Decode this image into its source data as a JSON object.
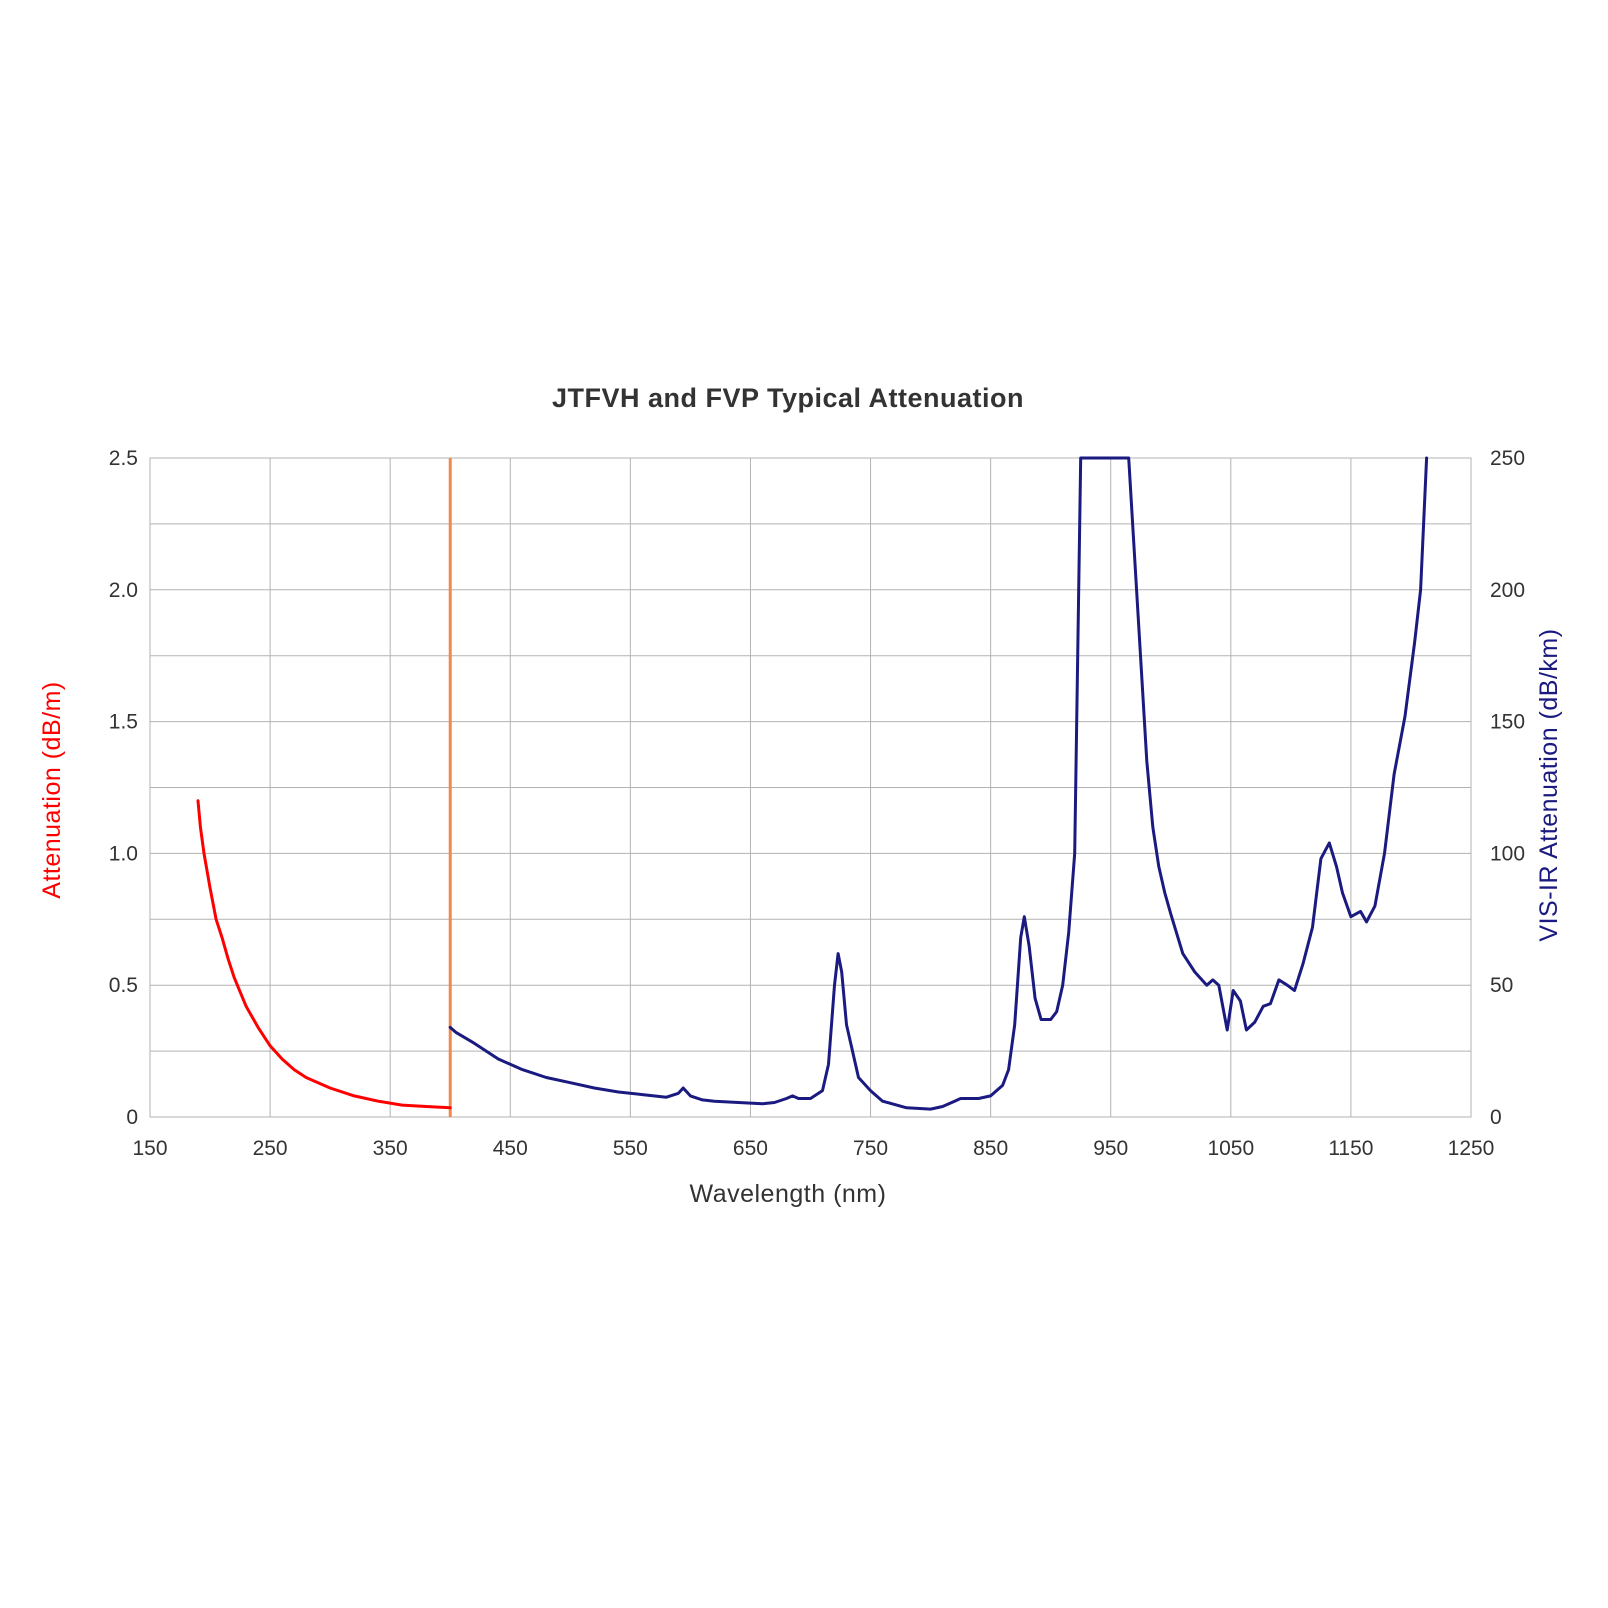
{
  "chart_data": {
    "type": "line",
    "title": "JTFVH and FVP Typical Attenuation",
    "xlabel": "Wavelength (nm)",
    "ylabel_left": "Attenuation (dB/m)",
    "ylabel_right": "VIS-IR Attenuation (dB/km)",
    "xlim": [
      150,
      1250
    ],
    "ylim_left": [
      0,
      2.5
    ],
    "ylim_right": [
      0,
      250
    ],
    "x_ticks": [
      "150",
      "250",
      "350",
      "450",
      "550",
      "650",
      "750",
      "850",
      "950",
      "1050",
      "1150",
      "1250"
    ],
    "y_ticks_left": [
      "0",
      "0.5",
      "1.0",
      "1.5",
      "2.0",
      "2.5"
    ],
    "y_ticks_right": [
      "0",
      "50",
      "100",
      "150",
      "200",
      "250"
    ],
    "grid": true,
    "divider_x": 400,
    "colors": {
      "uv": "#ff0000",
      "visir": "#1a1a80",
      "divider": "#f08a4b",
      "left_axis_label": "#ff0000",
      "right_axis_label": "#1a1a80",
      "grid": "#b3b3b3"
    },
    "series": [
      {
        "key": "uv",
        "axis": "left",
        "x": [
          190,
          192,
          195,
          200,
          205,
          210,
          215,
          220,
          230,
          240,
          250,
          260,
          270,
          280,
          290,
          300,
          320,
          340,
          360,
          380,
          400
        ],
        "values": [
          1.2,
          1.1,
          1.0,
          0.87,
          0.75,
          0.68,
          0.6,
          0.53,
          0.42,
          0.34,
          0.27,
          0.22,
          0.18,
          0.15,
          0.13,
          0.11,
          0.08,
          0.06,
          0.045,
          0.04,
          0.035
        ]
      },
      {
        "key": "visir",
        "axis": "right",
        "x": [
          400,
          405,
          420,
          440,
          460,
          480,
          500,
          520,
          540,
          560,
          580,
          590,
          594,
          600,
          610,
          620,
          640,
          660,
          670,
          680,
          685,
          690,
          700,
          710,
          715,
          720,
          723,
          726,
          730,
          740,
          750,
          760,
          780,
          800,
          810,
          820,
          825,
          830,
          840,
          850,
          860,
          865,
          870,
          875,
          878,
          882,
          887,
          892,
          900,
          905,
          910,
          915,
          920,
          925,
          927,
          930,
          940,
          950,
          960,
          965,
          980,
          985,
          990,
          995,
          1000,
          1010,
          1020,
          1030,
          1035,
          1040,
          1047,
          1052,
          1058,
          1063,
          1070,
          1077,
          1083,
          1090,
          1097,
          1103,
          1110,
          1118,
          1125,
          1132,
          1138,
          1143,
          1150,
          1158,
          1163,
          1170,
          1178,
          1186,
          1195,
          1203,
          1208,
          1213
        ],
        "values": [
          34,
          32,
          28,
          22,
          18,
          15,
          13,
          11,
          9.5,
          8.5,
          7.5,
          9,
          11,
          8,
          6.5,
          6,
          5.5,
          5,
          5.5,
          7,
          8,
          7,
          7,
          10,
          20,
          50,
          62,
          55,
          35,
          15,
          10,
          6,
          3.5,
          3,
          4,
          6,
          7,
          7,
          7,
          8,
          12,
          18,
          35,
          68,
          76,
          65,
          45,
          37,
          37,
          40,
          50,
          70,
          100,
          250,
          250,
          250,
          250,
          250,
          250,
          250,
          135,
          110,
          95,
          85,
          77,
          62,
          55,
          50,
          52,
          50,
          33,
          48,
          44,
          33,
          36,
          42,
          43,
          52,
          50,
          48,
          58,
          72,
          98,
          104,
          95,
          85,
          76,
          78,
          74,
          80,
          100,
          130,
          152,
          180,
          200,
          250
        ]
      }
    ]
  }
}
